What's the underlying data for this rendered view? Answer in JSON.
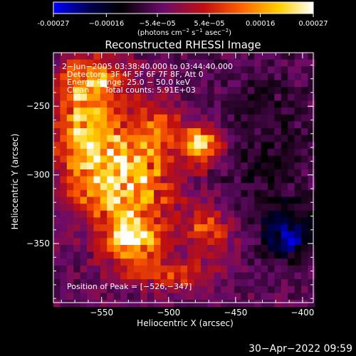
{
  "chart_data": {
    "type": "heatmap",
    "title": "Reconstructed RHESSI Image",
    "xlabel": "Heliocentric X (arcsec)",
    "ylabel": "Heliocentric Y (arcsec)",
    "xlim": [
      -586,
      -392
    ],
    "ylim": [
      -393,
      -211
    ],
    "xticks": [
      -550,
      -500,
      -450,
      -400
    ],
    "xtick_labels": [
      "−550",
      "−500",
      "−450",
      "−400"
    ],
    "yticks": [
      -250,
      -300,
      -350
    ],
    "ytick_labels": [
      "−250",
      "−300",
      "−350"
    ],
    "colorbar": {
      "ticks": [
        -0.00027,
        -0.00016,
        -5.4e-05,
        5.4e-05,
        0.00016,
        0.00027
      ],
      "tick_labels": [
        "-0.00027",
        "−0.00016",
        "−5.4e−05",
        "5.4e−05",
        "0.00016",
        "0.00027"
      ],
      "units_main": "(photons cm",
      "units_exp1": "−2",
      "units_mid": " s",
      "units_exp2": "−1",
      "units_tail": " asec",
      "units_exp3": "−2",
      "units_close": ")",
      "range": [
        -0.00027,
        0.00027
      ],
      "colormap": [
        "#0000ff",
        "#000040",
        "#000000",
        "#6a0b6b",
        "#c01010",
        "#ff6000",
        "#ffd000",
        "#ffffff"
      ]
    },
    "peak": [
      -526,
      -347
    ],
    "hot_regions": [
      {
        "x": -533,
        "y": -300,
        "sx": 24,
        "sy": 30,
        "w": 1.0
      },
      {
        "x": -475,
        "y": -278,
        "sx": 10,
        "sy": 10,
        "w": 1.0
      },
      {
        "x": -526,
        "y": -347,
        "sx": 13,
        "sy": 10,
        "w": 1.0
      },
      {
        "x": -470,
        "y": -340,
        "sx": 15,
        "sy": 12,
        "w": 0.55
      },
      {
        "x": -565,
        "y": -265,
        "sx": 14,
        "sy": 30,
        "w": 0.65
      },
      {
        "x": -553,
        "y": -232,
        "sx": 18,
        "sy": 12,
        "w": 0.55
      },
      {
        "x": -505,
        "y": -262,
        "sx": 10,
        "sy": 10,
        "w": 0.35
      },
      {
        "x": -500,
        "y": -372,
        "sx": 25,
        "sy": 8,
        "w": 0.45
      }
    ],
    "cold_regions": [
      {
        "x": -412,
        "y": -342,
        "sx": 14,
        "sy": 14,
        "w": 1.0
      },
      {
        "x": -430,
        "y": -280,
        "sx": 25,
        "sy": 40,
        "w": 0.35
      }
    ]
  },
  "overlay": {
    "time_range": "2−Jun−2005 03:38:40.000 to 03:44:40.000",
    "detectors": "Detectors: 3F 4F 5F 6F 7F 8F, Att 0",
    "energy_range": "Energy Range: 25.0 − 50.0 keV",
    "clean_label": "Clean",
    "total_counts": "Total counts: 5.91E+03",
    "peak_position": "Position of Peak = [−526,−347]"
  },
  "footer": {
    "timestamp": "30−Apr−2022 09:59"
  }
}
